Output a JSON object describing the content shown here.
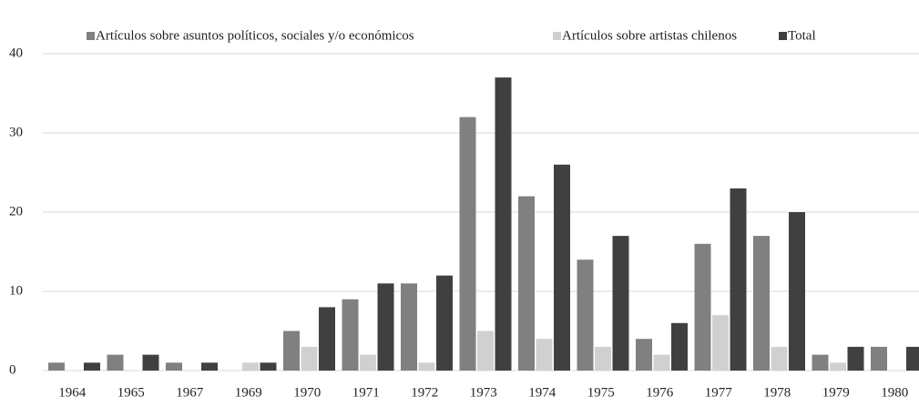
{
  "chart_data": {
    "type": "bar",
    "categories": [
      "1964",
      "1965",
      "1967",
      "1969",
      "1970",
      "1971",
      "1972",
      "1973",
      "1974",
      "1975",
      "1976",
      "1977",
      "1978",
      "1979",
      "1980"
    ],
    "series": [
      {
        "name": "Artículos sobre asuntos políticos, sociales y/o económicos",
        "color": "#808080",
        "values": [
          1,
          2,
          1,
          0,
          5,
          9,
          11,
          32,
          22,
          14,
          4,
          16,
          17,
          2,
          3
        ]
      },
      {
        "name": "Artículos sobre artistas chilenos",
        "color": "#d0d0d0",
        "values": [
          0,
          0,
          0,
          1,
          3,
          2,
          1,
          5,
          4,
          3,
          2,
          7,
          3,
          1,
          0
        ]
      },
      {
        "name": "Total",
        "color": "#404040",
        "values": [
          1,
          2,
          1,
          1,
          8,
          11,
          12,
          37,
          26,
          17,
          6,
          23,
          20,
          3,
          3
        ]
      }
    ],
    "ylim": [
      0,
      40
    ],
    "yticks": [
      0,
      10,
      20,
      30,
      40
    ],
    "grid": true,
    "legend": "top"
  }
}
